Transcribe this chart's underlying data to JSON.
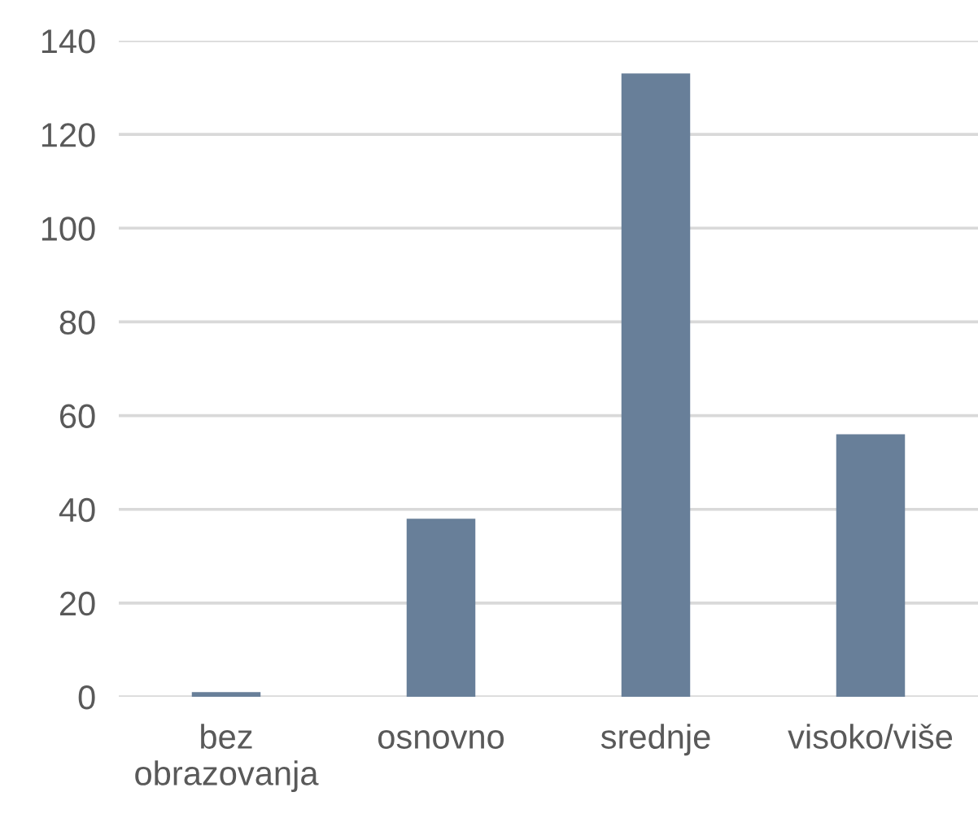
{
  "chart_data": {
    "type": "bar",
    "categories": [
      "bez obrazovanja",
      "osnovno",
      "srednje",
      "visoko/više"
    ],
    "values": [
      1,
      38,
      133,
      56
    ],
    "color": "#687f99",
    "ylim": [
      0,
      140
    ],
    "yticks": [
      0,
      20,
      40,
      60,
      80,
      100,
      120,
      140
    ],
    "grid": "y"
  }
}
